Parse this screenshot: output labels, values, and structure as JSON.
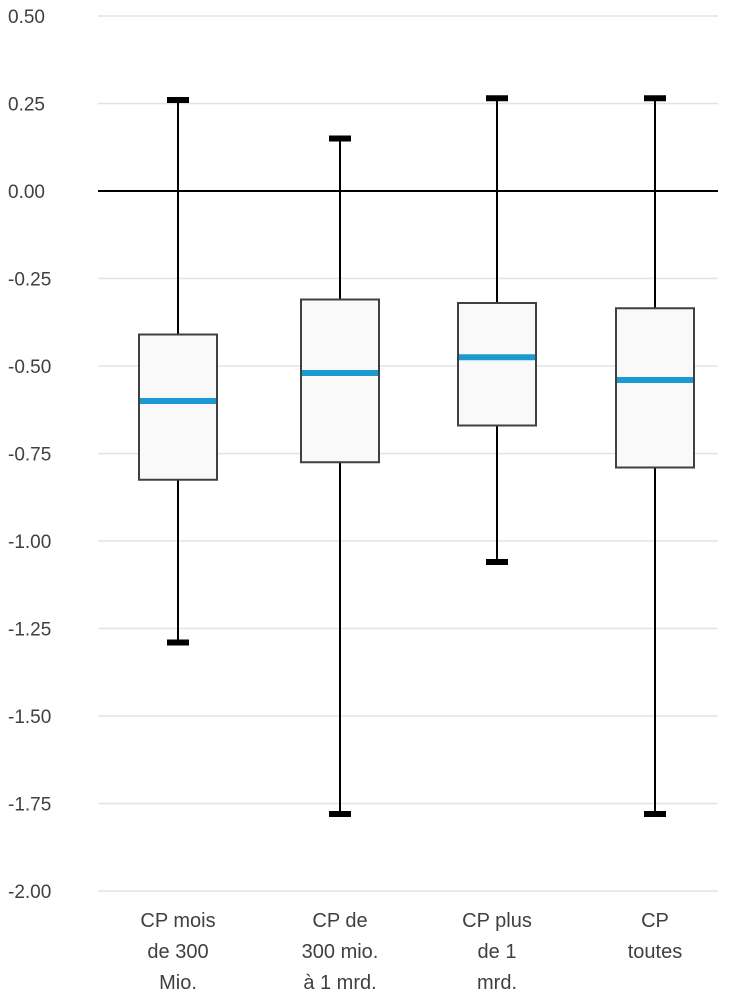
{
  "chart_data": {
    "type": "boxplot",
    "title": "",
    "xlabel": "",
    "ylabel": "",
    "ylim": [
      -2.0,
      0.5
    ],
    "yticks": [
      "0.50",
      "0.25",
      "0.00",
      "-0.25",
      "-0.50",
      "-0.75",
      "-1.00",
      "-1.25",
      "-1.50",
      "-1.75",
      "-2.00"
    ],
    "grid": true,
    "legend": "none",
    "colors": {
      "box_fill": "#f9f9f9",
      "box_stroke": "#404040",
      "median": "#1a9ad0",
      "whisker": "#000000",
      "grid": "#e3e3e3",
      "zero_line": "#000000"
    },
    "categories": [
      [
        "CP mois",
        "de 300",
        "Mio."
      ],
      [
        "CP de",
        "300 mio.",
        "à 1 mrd."
      ],
      [
        "CP plus",
        "de 1",
        "mrd."
      ],
      [
        "CP",
        "toutes"
      ]
    ],
    "boxes": [
      {
        "min": -1.29,
        "q1": -0.825,
        "median": -0.6,
        "q3": -0.41,
        "max": 0.26
      },
      {
        "min": -1.78,
        "q1": -0.775,
        "median": -0.52,
        "q3": -0.31,
        "max": 0.15
      },
      {
        "min": -1.06,
        "q1": -0.67,
        "median": -0.475,
        "q3": -0.32,
        "max": 0.265
      },
      {
        "min": -1.78,
        "q1": -0.79,
        "median": -0.54,
        "q3": -0.335,
        "max": 0.265
      }
    ]
  }
}
